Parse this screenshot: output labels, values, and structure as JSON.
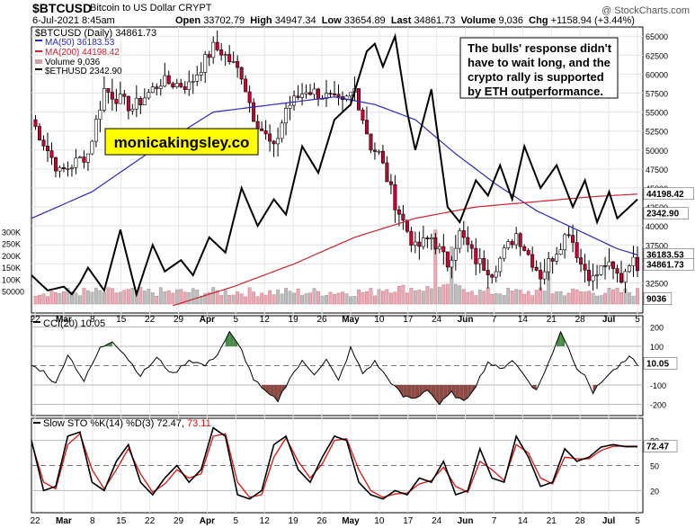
{
  "header": {
    "symbol": "$BTCUSD",
    "name": "Bitcoin to US Dollar  CRYPT",
    "date": "6-Jul-2021 8:45am",
    "open_label": "Open",
    "open": "33702.79",
    "high_label": "High",
    "high": "34947.34",
    "low_label": "Low",
    "low": "33654.89",
    "last_label": "Last",
    "last": "34861.73",
    "volume_label": "Volume",
    "volume": "9,036",
    "chg_label": "Chg",
    "chg": "+1158.94 (+3.44%)",
    "watermark": "@ StockCharts.com"
  },
  "legend": {
    "main": "$BTCUSD (Daily) 34861.73",
    "ma50": "MA(50) 36183.53",
    "ma200": "MA(200) 44198.42",
    "volume": "Volume 9,036",
    "eth": "$ETHUSD 2342.90"
  },
  "annotation": "The bulls' response didn't have to wait long, and the crypto rally is supported by ETH outperformance.",
  "watermark_box": "monicakingsley.co",
  "price_badges": {
    "ma200": "44198.42",
    "eth": "2342.90",
    "ma50": "36183.53",
    "last": "34861.73",
    "volume": "9036"
  },
  "cci_label": "CCI(20) 10.05",
  "cci_badge": "10.05",
  "sto_label": "Slow STO %K(14) %D(3) 72.47,",
  "sto_label_d": "73.11",
  "sto_badge": "72.47",
  "colors": {
    "up": "#ffffff",
    "down": "#cc0033",
    "ma50": "#2b2bbb",
    "ma200": "#cc2233",
    "eth": "#000000",
    "cci_pos": "#4a8a4a",
    "cci_neg": "#8b4a44",
    "sto_d": "#dd1111"
  },
  "chart_data": [
    {
      "type": "candlestick",
      "title": "$BTCUSD (Daily)",
      "x_labels": [
        "22",
        "Mar",
        "8",
        "15",
        "22",
        "29",
        "Apr",
        "5",
        "12",
        "19",
        "26",
        "May",
        "10",
        "17",
        "24",
        "Jun",
        "7",
        "14",
        "21",
        "28",
        "Jul",
        "5"
      ],
      "y_ticks": [
        32500,
        35000,
        37500,
        40000,
        42500,
        45000,
        47500,
        50000,
        52500,
        55000,
        57500,
        60000,
        62500,
        65000
      ],
      "ylim": [
        29000,
        65500
      ],
      "series": [
        {
          "name": "$BTCUSD",
          "kind": "ohlc",
          "close_anchors": [
            [
              0,
              54000
            ],
            [
              7,
              47000
            ],
            [
              14,
              49500
            ],
            [
              18,
              58000
            ],
            [
              25,
              55500
            ],
            [
              32,
              59000
            ],
            [
              39,
              58500
            ],
            [
              45,
              63500
            ],
            [
              47,
              63000
            ],
            [
              52,
              60000
            ],
            [
              55,
              54500
            ],
            [
              60,
              50000
            ],
            [
              63,
              55500
            ],
            [
              68,
              58000
            ],
            [
              73,
              57000
            ],
            [
              77,
              56000
            ],
            [
              80,
              58000
            ],
            [
              84,
              50500
            ],
            [
              86,
              49500
            ],
            [
              90,
              43000
            ],
            [
              95,
              37000
            ],
            [
              99,
              38500
            ],
            [
              103,
              35000
            ],
            [
              106,
              39000
            ],
            [
              110,
              35500
            ],
            [
              114,
              34000
            ],
            [
              117,
              36500
            ],
            [
              120,
              39000
            ],
            [
              126,
              33500
            ],
            [
              129,
              36000
            ],
            [
              133,
              39500
            ],
            [
              136,
              35000
            ],
            [
              139,
              33000
            ],
            [
              142,
              35000
            ],
            [
              146,
              33000
            ],
            [
              148,
              35500
            ],
            [
              150,
              34861.73
            ]
          ]
        },
        {
          "name": "MA(50)",
          "anchors": [
            [
              0,
              41000
            ],
            [
              15,
              44500
            ],
            [
              30,
              50000
            ],
            [
              45,
              55000
            ],
            [
              60,
              56000
            ],
            [
              75,
              57000
            ],
            [
              85,
              56000
            ],
            [
              95,
              54000
            ],
            [
              105,
              49500
            ],
            [
              115,
              45500
            ],
            [
              125,
              42000
            ],
            [
              135,
              39500
            ],
            [
              145,
              37000
            ],
            [
              150,
              36183.53
            ]
          ]
        },
        {
          "name": "MA(200)",
          "anchors": [
            [
              35,
              29500
            ],
            [
              50,
              32000
            ],
            [
              65,
              35000
            ],
            [
              80,
              38500
            ],
            [
              95,
              41000
            ],
            [
              110,
              42500
            ],
            [
              125,
              43200
            ],
            [
              140,
              43900
            ],
            [
              150,
              44198.42
            ]
          ]
        },
        {
          "name": "$ETHUSD",
          "axis": "secondary",
          "anchors": [
            [
              0,
              33500
            ],
            [
              4,
              31500
            ],
            [
              8,
              32000
            ],
            [
              10,
              31000
            ],
            [
              12,
              32500
            ],
            [
              14,
              34500
            ],
            [
              18,
              31500
            ],
            [
              22,
              39500
            ],
            [
              26,
              31000
            ],
            [
              30,
              37500
            ],
            [
              33,
              34000
            ],
            [
              37,
              35500
            ],
            [
              40,
              33500
            ],
            [
              44,
              38500
            ],
            [
              48,
              36500
            ],
            [
              52,
              45000
            ],
            [
              56,
              40000
            ],
            [
              60,
              43500
            ],
            [
              63,
              41500
            ],
            [
              67,
              50500
            ],
            [
              71,
              47000
            ],
            [
              75,
              54000
            ],
            [
              79,
              56000
            ],
            [
              83,
              63000
            ],
            [
              85,
              64000
            ],
            [
              87,
              61000
            ],
            [
              90,
              65000
            ],
            [
              93,
              55000
            ],
            [
              95,
              50000
            ],
            [
              99,
              58000
            ],
            [
              103,
              42500
            ],
            [
              106,
              40500
            ],
            [
              110,
              46000
            ],
            [
              113,
              44000
            ],
            [
              116,
              48000
            ],
            [
              119,
              43500
            ],
            [
              122,
              50500
            ],
            [
              126,
              45000
            ],
            [
              130,
              48000
            ],
            [
              134,
              42500
            ],
            [
              137,
              46000
            ],
            [
              140,
              40500
            ],
            [
              143,
              44500
            ],
            [
              145,
              41000
            ],
            [
              148,
              42500
            ],
            [
              150,
              43500
            ]
          ]
        }
      ]
    },
    {
      "type": "bar",
      "title": "Volume",
      "y_ticks": [
        50000,
        100000,
        150000,
        200000,
        250000,
        300000
      ],
      "tick_labels": [
        "50000",
        "100K",
        "150K",
        "200K",
        "250K",
        "300K"
      ],
      "spike_bars": [
        {
          "x": 100,
          "value": 310000
        },
        {
          "x": 104,
          "value": 240000
        },
        {
          "x": 128,
          "value": 170000
        }
      ]
    },
    {
      "type": "line",
      "title": "CCI(20)",
      "y_ticks": [
        -200,
        -100,
        0,
        100,
        200
      ],
      "ylim": [
        -230,
        230
      ],
      "anchors": [
        [
          0,
          0
        ],
        [
          3,
          -30
        ],
        [
          6,
          -95
        ],
        [
          9,
          60
        ],
        [
          13,
          -80
        ],
        [
          17,
          90
        ],
        [
          20,
          130
        ],
        [
          23,
          60
        ],
        [
          27,
          -50
        ],
        [
          31,
          40
        ],
        [
          35,
          -45
        ],
        [
          39,
          30
        ],
        [
          43,
          0
        ],
        [
          46,
          60
        ],
        [
          49,
          170
        ],
        [
          52,
          80
        ],
        [
          55,
          -70
        ],
        [
          58,
          -140
        ],
        [
          61,
          -180
        ],
        [
          64,
          -60
        ],
        [
          67,
          20
        ],
        [
          70,
          -40
        ],
        [
          73,
          30
        ],
        [
          76,
          -80
        ],
        [
          79,
          90
        ],
        [
          82,
          -40
        ],
        [
          85,
          20
        ],
        [
          88,
          -60
        ],
        [
          92,
          -160
        ],
        [
          95,
          -170
        ],
        [
          98,
          -120
        ],
        [
          101,
          -200
        ],
        [
          104,
          -140
        ],
        [
          107,
          -190
        ],
        [
          110,
          -100
        ],
        [
          113,
          20
        ],
        [
          116,
          -20
        ],
        [
          119,
          30
        ],
        [
          122,
          -50
        ],
        [
          125,
          -130
        ],
        [
          127,
          -30
        ],
        [
          129,
          60
        ],
        [
          131,
          180
        ],
        [
          133,
          90
        ],
        [
          135,
          -20
        ],
        [
          137,
          -40
        ],
        [
          139,
          -140
        ],
        [
          142,
          -60
        ],
        [
          145,
          -10
        ],
        [
          148,
          40
        ],
        [
          150,
          10.05
        ]
      ]
    },
    {
      "type": "line",
      "title": "Slow STO %K(14) %D(3)",
      "y_ticks": [
        20,
        50,
        80
      ],
      "ylim": [
        0,
        100
      ],
      "anchors_k": [
        [
          0,
          80
        ],
        [
          3,
          20
        ],
        [
          6,
          25
        ],
        [
          9,
          85
        ],
        [
          12,
          90
        ],
        [
          15,
          30
        ],
        [
          18,
          20
        ],
        [
          21,
          55
        ],
        [
          24,
          75
        ],
        [
          27,
          30
        ],
        [
          30,
          15
        ],
        [
          33,
          35
        ],
        [
          36,
          50
        ],
        [
          39,
          30
        ],
        [
          42,
          45
        ],
        [
          45,
          95
        ],
        [
          48,
          85
        ],
        [
          51,
          15
        ],
        [
          54,
          10
        ],
        [
          57,
          20
        ],
        [
          60,
          75
        ],
        [
          63,
          85
        ],
        [
          66,
          45
        ],
        [
          69,
          30
        ],
        [
          72,
          60
        ],
        [
          75,
          85
        ],
        [
          78,
          80
        ],
        [
          81,
          30
        ],
        [
          84,
          15
        ],
        [
          87,
          10
        ],
        [
          90,
          20
        ],
        [
          93,
          15
        ],
        [
          96,
          35
        ],
        [
          99,
          30
        ],
        [
          102,
          55
        ],
        [
          105,
          15
        ],
        [
          108,
          20
        ],
        [
          111,
          70
        ],
        [
          114,
          35
        ],
        [
          117,
          30
        ],
        [
          120,
          85
        ],
        [
          123,
          60
        ],
        [
          126,
          25
        ],
        [
          129,
          30
        ],
        [
          132,
          70
        ],
        [
          135,
          55
        ],
        [
          138,
          60
        ],
        [
          141,
          72
        ],
        [
          144,
          75
        ],
        [
          147,
          72.47
        ],
        [
          150,
          72.47
        ]
      ],
      "anchors_d": [
        [
          0,
          78
        ],
        [
          3,
          30
        ],
        [
          6,
          22
        ],
        [
          9,
          75
        ],
        [
          12,
          88
        ],
        [
          15,
          45
        ],
        [
          18,
          22
        ],
        [
          21,
          45
        ],
        [
          24,
          70
        ],
        [
          27,
          40
        ],
        [
          30,
          18
        ],
        [
          33,
          28
        ],
        [
          36,
          45
        ],
        [
          39,
          35
        ],
        [
          42,
          40
        ],
        [
          45,
          85
        ],
        [
          48,
          88
        ],
        [
          51,
          30
        ],
        [
          54,
          12
        ],
        [
          57,
          15
        ],
        [
          60,
          60
        ],
        [
          63,
          83
        ],
        [
          66,
          55
        ],
        [
          69,
          35
        ],
        [
          72,
          52
        ],
        [
          75,
          80
        ],
        [
          78,
          82
        ],
        [
          81,
          45
        ],
        [
          84,
          20
        ],
        [
          87,
          12
        ],
        [
          90,
          16
        ],
        [
          93,
          17
        ],
        [
          96,
          28
        ],
        [
          99,
          32
        ],
        [
          102,
          48
        ],
        [
          105,
          25
        ],
        [
          108,
          18
        ],
        [
          111,
          55
        ],
        [
          114,
          45
        ],
        [
          117,
          32
        ],
        [
          120,
          75
        ],
        [
          123,
          65
        ],
        [
          126,
          35
        ],
        [
          129,
          28
        ],
        [
          132,
          60
        ],
        [
          135,
          58
        ],
        [
          138,
          58
        ],
        [
          141,
          68
        ],
        [
          144,
          73
        ],
        [
          147,
          73.11
        ],
        [
          150,
          73.11
        ]
      ]
    }
  ]
}
